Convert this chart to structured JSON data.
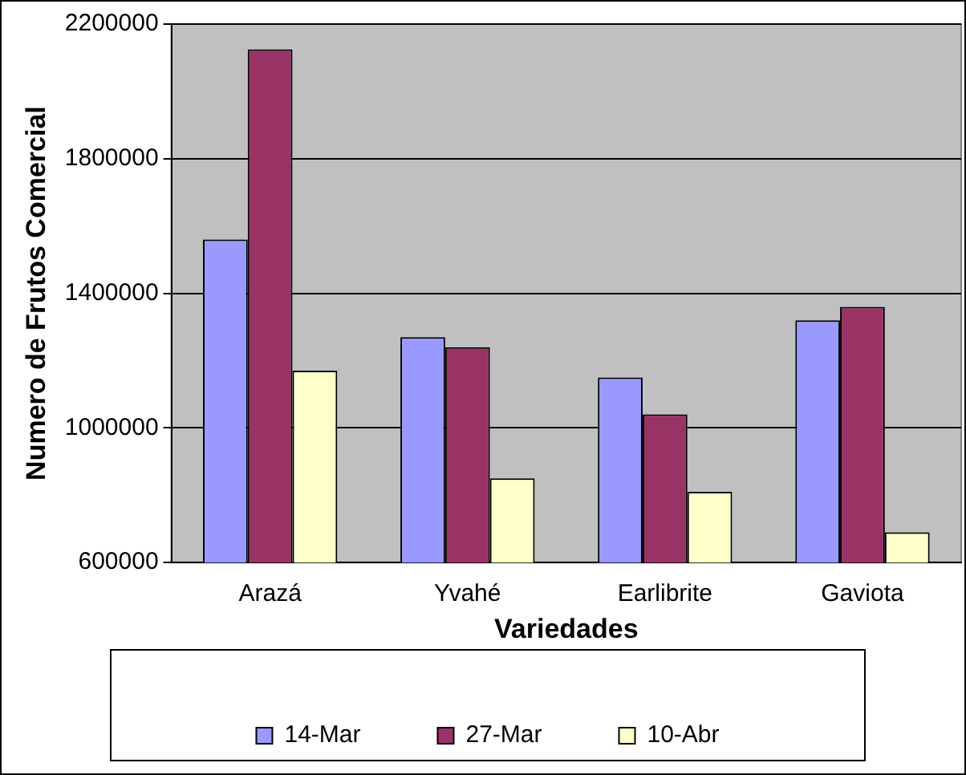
{
  "chart_data": {
    "type": "bar",
    "xlabel": "Variedades",
    "ylabel": "Numero de Frutos Comercial",
    "categories": [
      "Arazá",
      "Yvahé",
      "Earlibrite",
      "Gaviota"
    ],
    "series": [
      {
        "name": "14-Mar",
        "color": "#9999ff",
        "values": [
          1560000,
          1270000,
          1150000,
          1320000
        ]
      },
      {
        "name": "27-Mar",
        "color": "#993366",
        "values": [
          2125000,
          1240000,
          1040000,
          1360000
        ]
      },
      {
        "name": "10-Abr",
        "color": "#ffffcc",
        "values": [
          1170000,
          850000,
          810000,
          690000
        ]
      }
    ],
    "ylim": [
      600000,
      2200000
    ],
    "yticks": [
      600000,
      1000000,
      1400000,
      1800000,
      2200000
    ],
    "grid": "y",
    "legend": "bottom"
  }
}
